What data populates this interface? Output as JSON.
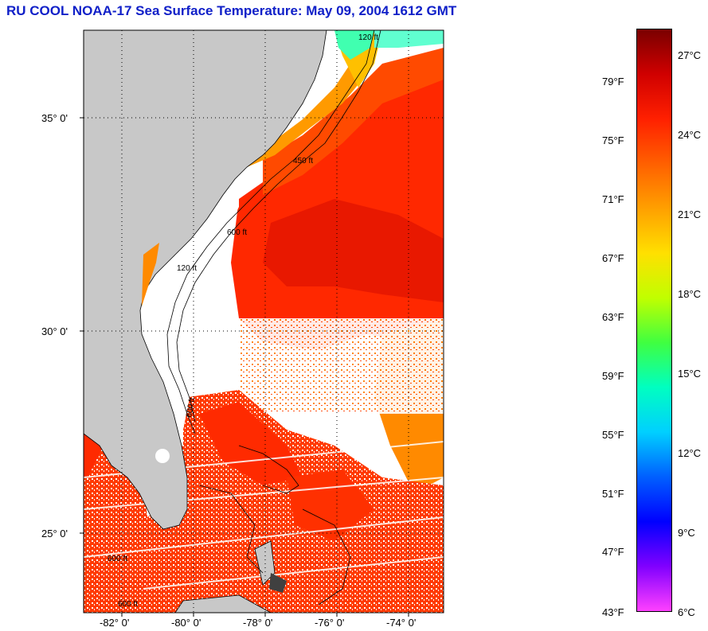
{
  "title": "RU COOL  NOAA-17  Sea Surface Temperature:  May 09, 2004 1612 GMT",
  "map": {
    "latitude_labels": [
      "35° 0'",
      "30° 0'",
      "25° 0'"
    ],
    "longitude_labels": [
      "-82° 0'",
      "-80° 0'",
      "-78° 0'",
      "-76° 0'",
      "-74° 0'"
    ],
    "contour_labels": [
      "120 ft",
      "450 ft",
      "600 ft",
      "120 ft",
      "600 ft",
      "600 ft",
      "600 ft"
    ],
    "colors": {
      "land": "#c8c8c8",
      "cloud": "#ffffff",
      "warm_sea": "#ff2a00",
      "mid_sea": "#ff6a00",
      "cool_sea": "#ffb000"
    }
  },
  "colorbar": {
    "fahrenheit_labels": [
      "79°F",
      "75°F",
      "71°F",
      "67°F",
      "63°F",
      "59°F",
      "55°F",
      "51°F",
      "47°F",
      "43°F"
    ],
    "celsius_labels": [
      "27°C",
      "24°C",
      "21°C",
      "18°C",
      "15°C",
      "12°C",
      "9°C",
      "6°C"
    ],
    "colors_top_to_bottom": [
      "#7a0000",
      "#d00000",
      "#ff2000",
      "#ff6000",
      "#ffa000",
      "#ffe000",
      "#c0ff00",
      "#40ff40",
      "#00ffc0",
      "#00d0ff",
      "#0060ff",
      "#0000ff",
      "#8000ff",
      "#ff40ff"
    ]
  }
}
